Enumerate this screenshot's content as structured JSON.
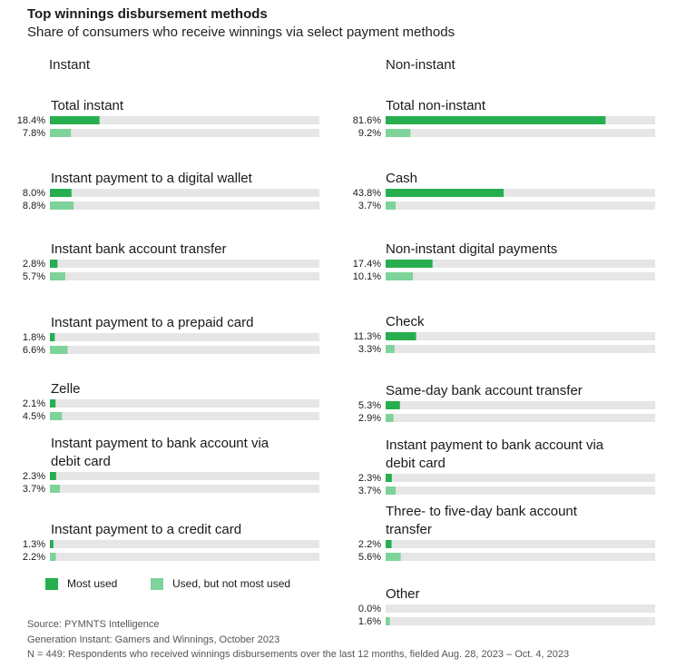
{
  "title": "Top winnings disbursement methods",
  "subtitle": "Share of consumers who receive winnings via select payment methods",
  "legend": {
    "most": "Most used",
    "used": "Used, but not most used"
  },
  "colors": {
    "most": "#27ae4f",
    "used": "#7ed39a",
    "track": "#e6e6e6"
  },
  "footer": {
    "source": "Source: PYMNTS Intelligence",
    "report": "Generation Instant: Gamers and Winnings, October 2023",
    "note": "N = 449: Respondents who received winnings disbursements over the last 12 months, fielded Aug. 28, 2023 – Oct. 4, 2023"
  },
  "chart_data": {
    "type": "bar",
    "xlim": [
      0,
      100
    ],
    "series_names": [
      "Most used",
      "Used, but not most used"
    ],
    "panels": [
      {
        "title": "Instant",
        "categories": [
          {
            "label": [
              "Total instant"
            ],
            "values": [
              18.4,
              7.8
            ],
            "labels": [
              "18.4%",
              "7.8%"
            ]
          },
          {
            "label": [
              "Instant payment to a digital wallet"
            ],
            "values": [
              8.0,
              8.8
            ],
            "labels": [
              "8.0%",
              "8.8%"
            ]
          },
          {
            "label": [
              "Instant bank account transfer"
            ],
            "values": [
              2.8,
              5.7
            ],
            "labels": [
              "2.8%",
              "5.7%"
            ]
          },
          {
            "label": [
              "Instant payment to a prepaid card"
            ],
            "values": [
              1.8,
              6.6
            ],
            "labels": [
              "1.8%",
              "6.6%"
            ]
          },
          {
            "label": [
              "Zelle"
            ],
            "values": [
              2.1,
              4.5
            ],
            "labels": [
              "2.1%",
              "4.5%"
            ]
          },
          {
            "label": [
              "Instant payment to bank account via",
              "debit card"
            ],
            "values": [
              2.3,
              3.7
            ],
            "labels": [
              "2.3%",
              "3.7%"
            ]
          },
          {
            "label": [
              "Instant payment to a credit card"
            ],
            "values": [
              1.3,
              2.2
            ],
            "labels": [
              "1.3%",
              "2.2%"
            ]
          }
        ]
      },
      {
        "title": "Non-instant",
        "categories": [
          {
            "label": [
              "Total non-instant"
            ],
            "values": [
              81.6,
              9.2
            ],
            "labels": [
              "81.6%",
              "9.2%"
            ]
          },
          {
            "label": [
              "Cash"
            ],
            "values": [
              43.8,
              3.7
            ],
            "labels": [
              "43.8%",
              "3.7%"
            ]
          },
          {
            "label": [
              "Non-instant digital payments"
            ],
            "values": [
              17.4,
              10.1
            ],
            "labels": [
              "17.4%",
              "10.1%"
            ]
          },
          {
            "label": [
              "Check"
            ],
            "values": [
              11.3,
              3.3
            ],
            "labels": [
              "11.3%",
              "3.3%"
            ]
          },
          {
            "label": [
              "Same-day bank account transfer"
            ],
            "values": [
              5.3,
              2.9
            ],
            "labels": [
              "5.3%",
              "2.9%"
            ]
          },
          {
            "label": [
              "Instant payment to bank account via",
              "debit card"
            ],
            "values": [
              2.3,
              3.7
            ],
            "labels": [
              "2.3%",
              "3.7%"
            ]
          },
          {
            "label": [
              "Three- to five-day bank account",
              "transfer"
            ],
            "values": [
              2.2,
              5.6
            ],
            "labels": [
              "2.2%",
              "5.6%"
            ]
          },
          {
            "label": [
              "Other"
            ],
            "values": [
              0.0,
              1.6
            ],
            "labels": [
              "0.0%",
              "1.6%"
            ]
          }
        ]
      }
    ]
  }
}
